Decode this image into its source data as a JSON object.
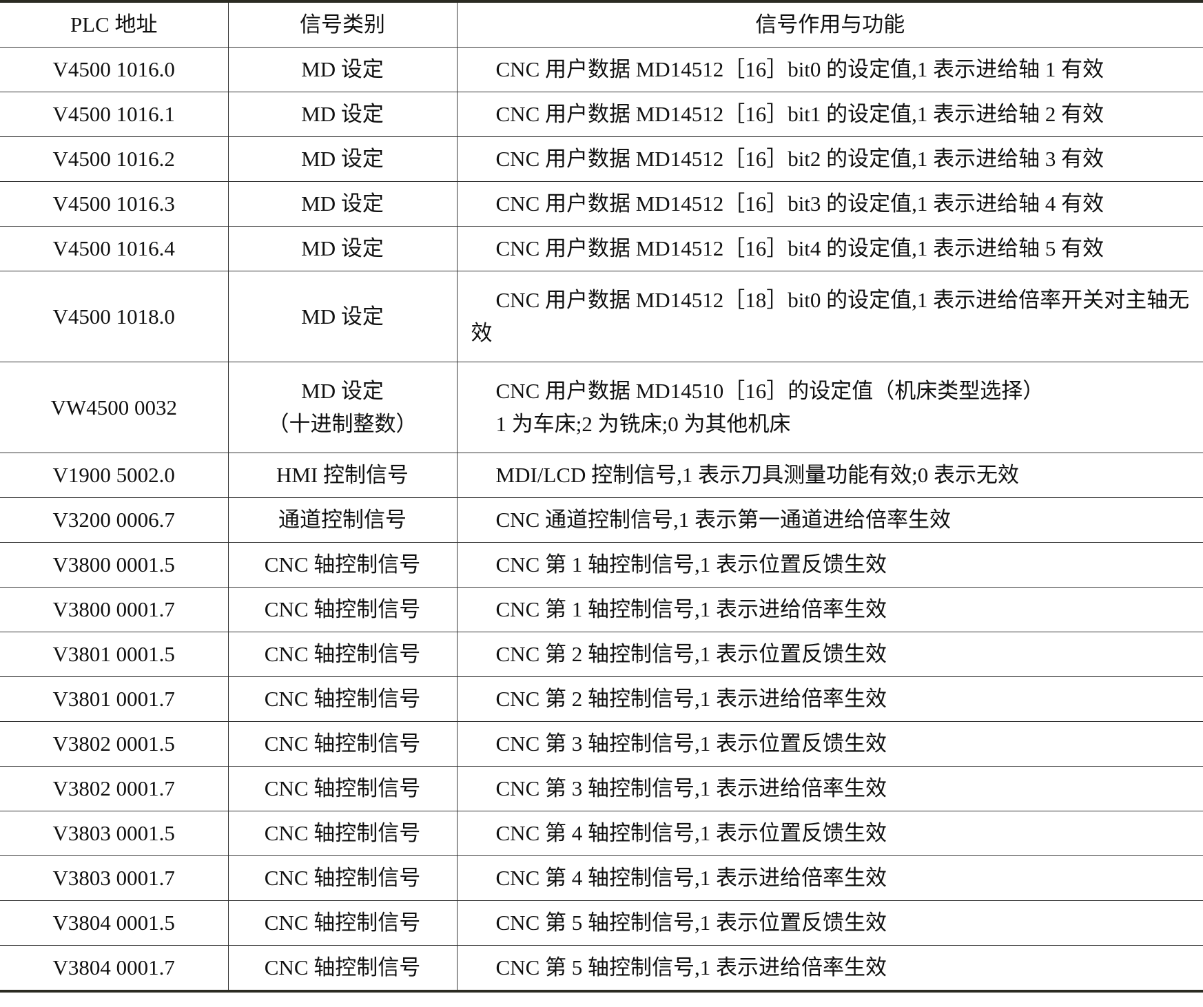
{
  "headers": [
    "PLC 地址",
    "信号类别",
    "信号作用与功能"
  ],
  "rows": [
    {
      "addr": "V4500 1016.0",
      "type": [
        "MD 设定"
      ],
      "desc": [
        "CNC 用户数据 MD14512［16］bit0 的设定值,1 表示进给轴 1 有效"
      ]
    },
    {
      "addr": "V4500 1016.1",
      "type": [
        "MD 设定"
      ],
      "desc": [
        "CNC 用户数据 MD14512［16］bit1 的设定值,1 表示进给轴 2 有效"
      ]
    },
    {
      "addr": "V4500 1016.2",
      "type": [
        "MD 设定"
      ],
      "desc": [
        "CNC 用户数据 MD14512［16］bit2 的设定值,1 表示进给轴 3 有效"
      ]
    },
    {
      "addr": "V4500 1016.3",
      "type": [
        "MD 设定"
      ],
      "desc": [
        "CNC 用户数据 MD14512［16］bit3 的设定值,1 表示进给轴 4 有效"
      ]
    },
    {
      "addr": "V4500 1016.4",
      "type": [
        "MD 设定"
      ],
      "desc": [
        "CNC 用户数据 MD14512［16］bit4 的设定值,1 表示进给轴 5 有效"
      ]
    },
    {
      "addr": "V4500 1018.0",
      "type": [
        "MD 设定"
      ],
      "desc": [
        "CNC 用户数据 MD14512［18］bit0 的设定值,1 表示进给倍率开关对主轴无效"
      ],
      "wrap": true
    },
    {
      "addr": "VW4500 0032",
      "type": [
        "MD 设定",
        "（十进制整数）"
      ],
      "desc": [
        "CNC 用户数据 MD14510［16］的设定值（机床类型选择）",
        "1 为车床;2 为铣床;0 为其他机床"
      ]
    },
    {
      "addr": "V1900 5002.0",
      "type": [
        "HMI 控制信号"
      ],
      "desc": [
        "MDI/LCD 控制信号,1 表示刀具测量功能有效;0 表示无效"
      ]
    },
    {
      "addr": "V3200 0006.7",
      "type": [
        "通道控制信号"
      ],
      "desc": [
        "CNC 通道控制信号,1 表示第一通道进给倍率生效"
      ]
    },
    {
      "addr": "V3800 0001.5",
      "type": [
        "CNC 轴控制信号"
      ],
      "desc": [
        "CNC 第 1 轴控制信号,1 表示位置反馈生效"
      ]
    },
    {
      "addr": "V3800 0001.7",
      "type": [
        "CNC 轴控制信号"
      ],
      "desc": [
        "CNC 第 1 轴控制信号,1 表示进给倍率生效"
      ]
    },
    {
      "addr": "V3801 0001.5",
      "type": [
        "CNC 轴控制信号"
      ],
      "desc": [
        "CNC 第 2 轴控制信号,1 表示位置反馈生效"
      ]
    },
    {
      "addr": "V3801 0001.7",
      "type": [
        "CNC 轴控制信号"
      ],
      "desc": [
        "CNC 第 2 轴控制信号,1 表示进给倍率生效"
      ]
    },
    {
      "addr": "V3802 0001.5",
      "type": [
        "CNC 轴控制信号"
      ],
      "desc": [
        "CNC 第 3 轴控制信号,1 表示位置反馈生效"
      ]
    },
    {
      "addr": "V3802 0001.7",
      "type": [
        "CNC 轴控制信号"
      ],
      "desc": [
        "CNC 第 3 轴控制信号,1 表示进给倍率生效"
      ]
    },
    {
      "addr": "V3803 0001.5",
      "type": [
        "CNC 轴控制信号"
      ],
      "desc": [
        "CNC 第 4 轴控制信号,1 表示位置反馈生效"
      ]
    },
    {
      "addr": "V3803 0001.7",
      "type": [
        "CNC 轴控制信号"
      ],
      "desc": [
        "CNC 第 4 轴控制信号,1 表示进给倍率生效"
      ]
    },
    {
      "addr": "V3804 0001.5",
      "type": [
        "CNC 轴控制信号"
      ],
      "desc": [
        "CNC 第 5 轴控制信号,1 表示位置反馈生效"
      ]
    },
    {
      "addr": "V3804 0001.7",
      "type": [
        "CNC 轴控制信号"
      ],
      "desc": [
        "CNC 第 5 轴控制信号,1 表示进给倍率生效"
      ]
    }
  ]
}
